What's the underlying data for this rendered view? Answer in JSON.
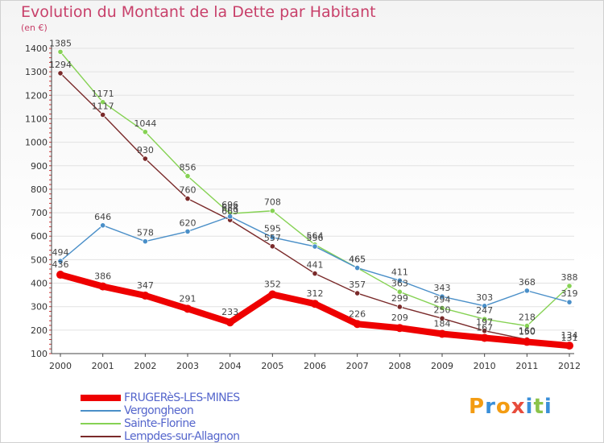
{
  "title": "Evolution du Montant de la Dette par Habitant",
  "unit": "(en €)",
  "logo": {
    "chars": [
      "P",
      "r",
      "o",
      "x",
      "i",
      "t",
      "i"
    ],
    "colors": [
      "#f39c12",
      "#3a8fd9",
      "#f39c12",
      "#e74c3c",
      "#3a8fd9",
      "#8bc34a",
      "#3a8fd9"
    ]
  },
  "chart_data": {
    "type": "line",
    "title": "Evolution du Montant de la Dette par Habitant",
    "ylabel": "(en €)",
    "xlabel": "",
    "x": [
      "2000",
      "2001",
      "2002",
      "2003",
      "2004",
      "2005",
      "2006",
      "2007",
      "2008",
      "2009",
      "2010",
      "2011",
      "2012"
    ],
    "ylim": [
      100,
      1400
    ],
    "yticks": [
      100,
      200,
      300,
      400,
      500,
      600,
      700,
      800,
      900,
      1000,
      1100,
      1200,
      1300,
      1400
    ],
    "legend": "bottom-left",
    "series": [
      {
        "name": "FRUGERèS-LES-MINES",
        "color": "#ee0000",
        "values": [
          436,
          386,
          347,
          291,
          233,
          352,
          312,
          226,
          209,
          184,
          167,
          150,
          134
        ]
      },
      {
        "name": "Vergongheon",
        "color": "#4a8fc8",
        "values": [
          494,
          646,
          578,
          620,
          684,
          595,
          556,
          465,
          411,
          343,
          303,
          368,
          319
        ]
      },
      {
        "name": "Sainte-Florine",
        "color": "#86d254",
        "values": [
          1385,
          1171,
          1044,
          856,
          696,
          708,
          564,
          465,
          363,
          294,
          247,
          218,
          388
        ]
      },
      {
        "name": "Lempdes-sur-Allagnon",
        "color": "#7a2a2a",
        "values": [
          1294,
          1117,
          930,
          760,
          669,
          557,
          441,
          357,
          299,
          250,
          197,
          160,
          131
        ]
      }
    ]
  }
}
